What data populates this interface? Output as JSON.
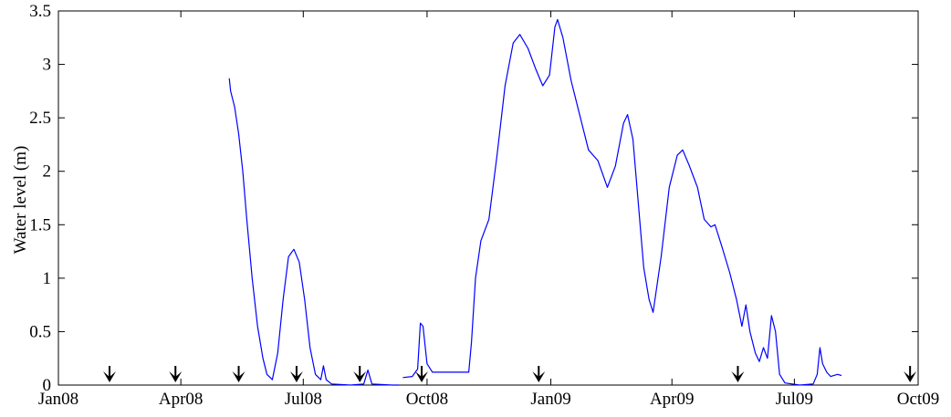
{
  "chart_data": {
    "type": "line",
    "title": "",
    "xlabel": "",
    "ylabel": "Water level (m)",
    "ylim": [
      0,
      3.5
    ],
    "xlim": [
      "2008-01-01",
      "2009-10-01"
    ],
    "grid": false,
    "legend": "none",
    "x_ticks": [
      {
        "date": "2008-01-01",
        "label": "Jan08"
      },
      {
        "date": "2008-04-01",
        "label": "Apr08"
      },
      {
        "date": "2008-07-01",
        "label": "Jul08"
      },
      {
        "date": "2008-10-01",
        "label": "Oct08"
      },
      {
        "date": "2009-01-01",
        "label": "Jan09"
      },
      {
        "date": "2009-04-01",
        "label": "Apr09"
      },
      {
        "date": "2009-07-01",
        "label": "Jul09"
      },
      {
        "date": "2009-10-01",
        "label": "Oct09"
      }
    ],
    "y_ticks": [
      {
        "value": 0,
        "label": "0"
      },
      {
        "value": 0.5,
        "label": "0.5"
      },
      {
        "value": 1,
        "label": "1"
      },
      {
        "value": 1.5,
        "label": "1.5"
      },
      {
        "value": 2,
        "label": "2"
      },
      {
        "value": 2.5,
        "label": "2.5"
      },
      {
        "value": 3,
        "label": "3"
      },
      {
        "value": 3.5,
        "label": "3.5"
      }
    ],
    "series": [
      {
        "color": "#0000ff",
        "segments": [
          [
            [
              "2008-05-07",
              2.87
            ],
            [
              "2008-05-08",
              2.75
            ],
            [
              "2008-05-11",
              2.6
            ],
            [
              "2008-05-14",
              2.35
            ],
            [
              "2008-05-17",
              2.0
            ],
            [
              "2008-05-20",
              1.55
            ],
            [
              "2008-05-24",
              1.0
            ],
            [
              "2008-05-28",
              0.55
            ],
            [
              "2008-06-01",
              0.25
            ],
            [
              "2008-06-04",
              0.1
            ],
            [
              "2008-06-08",
              0.05
            ],
            [
              "2008-06-12",
              0.3
            ],
            [
              "2008-06-16",
              0.8
            ],
            [
              "2008-06-20",
              1.2
            ],
            [
              "2008-06-24",
              1.27
            ],
            [
              "2008-06-28",
              1.15
            ],
            [
              "2008-07-02",
              0.8
            ],
            [
              "2008-07-06",
              0.35
            ],
            [
              "2008-07-10",
              0.1
            ],
            [
              "2008-07-14",
              0.05
            ],
            [
              "2008-07-16",
              0.18
            ],
            [
              "2008-07-18",
              0.05
            ],
            [
              "2008-07-22",
              0.01
            ],
            [
              "2008-08-05",
              0.0
            ],
            [
              "2008-08-15",
              0.01
            ],
            [
              "2008-08-18",
              0.14
            ],
            [
              "2008-08-21",
              0.01
            ],
            [
              "2008-09-05",
              0.0
            ],
            [
              "2008-09-10",
              0.0
            ]
          ],
          [
            [
              "2008-09-13",
              0.07
            ],
            [
              "2008-09-20",
              0.08
            ],
            [
              "2008-09-24",
              0.15
            ],
            [
              "2008-09-26",
              0.58
            ],
            [
              "2008-09-28",
              0.55
            ],
            [
              "2008-10-01",
              0.2
            ],
            [
              "2008-10-05",
              0.12
            ],
            [
              "2008-10-20",
              0.12
            ],
            [
              "2008-11-01",
              0.12
            ],
            [
              "2008-11-03",
              0.4
            ],
            [
              "2008-11-06",
              1.0
            ],
            [
              "2008-11-10",
              1.35
            ],
            [
              "2008-11-16",
              1.55
            ],
            [
              "2008-11-22",
              2.15
            ],
            [
              "2008-11-28",
              2.8
            ],
            [
              "2008-12-04",
              3.2
            ],
            [
              "2008-12-09",
              3.28
            ],
            [
              "2008-12-15",
              3.15
            ],
            [
              "2008-12-21",
              2.95
            ],
            [
              "2008-12-26",
              2.8
            ],
            [
              "2008-12-31",
              2.9
            ],
            [
              "2009-01-04",
              3.35
            ],
            [
              "2009-01-06",
              3.42
            ],
            [
              "2009-01-10",
              3.25
            ],
            [
              "2009-01-16",
              2.85
            ],
            [
              "2009-01-22",
              2.55
            ],
            [
              "2009-01-29",
              2.2
            ],
            [
              "2009-02-05",
              2.1
            ],
            [
              "2009-02-12",
              1.85
            ],
            [
              "2009-02-18",
              2.05
            ],
            [
              "2009-02-24",
              2.45
            ],
            [
              "2009-02-27",
              2.53
            ],
            [
              "2009-03-03",
              2.3
            ],
            [
              "2009-03-07",
              1.7
            ],
            [
              "2009-03-11",
              1.1
            ],
            [
              "2009-03-15",
              0.8
            ],
            [
              "2009-03-18",
              0.68
            ],
            [
              "2009-03-24",
              1.2
            ],
            [
              "2009-03-30",
              1.85
            ],
            [
              "2009-04-05",
              2.15
            ],
            [
              "2009-04-09",
              2.2
            ],
            [
              "2009-04-14",
              2.05
            ],
            [
              "2009-04-20",
              1.85
            ],
            [
              "2009-04-25",
              1.55
            ],
            [
              "2009-04-30",
              1.48
            ],
            [
              "2009-05-03",
              1.5
            ],
            [
              "2009-05-08",
              1.3
            ],
            [
              "2009-05-14",
              1.05
            ],
            [
              "2009-05-19",
              0.8
            ],
            [
              "2009-05-23",
              0.55
            ],
            [
              "2009-05-26",
              0.75
            ],
            [
              "2009-05-29",
              0.5
            ],
            [
              "2009-06-02",
              0.3
            ],
            [
              "2009-06-05",
              0.22
            ],
            [
              "2009-06-08",
              0.35
            ],
            [
              "2009-06-11",
              0.25
            ],
            [
              "2009-06-14",
              0.65
            ],
            [
              "2009-06-17",
              0.5
            ],
            [
              "2009-06-20",
              0.1
            ],
            [
              "2009-06-24",
              0.02
            ],
            [
              "2009-07-05",
              0.0
            ],
            [
              "2009-07-15",
              0.01
            ],
            [
              "2009-07-18",
              0.1
            ],
            [
              "2009-07-20",
              0.35
            ],
            [
              "2009-07-22",
              0.2
            ],
            [
              "2009-07-25",
              0.12
            ],
            [
              "2009-07-28",
              0.08
            ],
            [
              "2009-08-02",
              0.1
            ],
            [
              "2009-08-05",
              0.09
            ]
          ]
        ]
      }
    ],
    "markers": {
      "symbol": "down-arrow",
      "color": "#000000",
      "dates": [
        "2008-02-08",
        "2008-03-28",
        "2008-05-14",
        "2008-06-26",
        "2008-08-12",
        "2008-09-27",
        "2008-12-23",
        "2009-05-20",
        "2009-09-25"
      ]
    }
  }
}
